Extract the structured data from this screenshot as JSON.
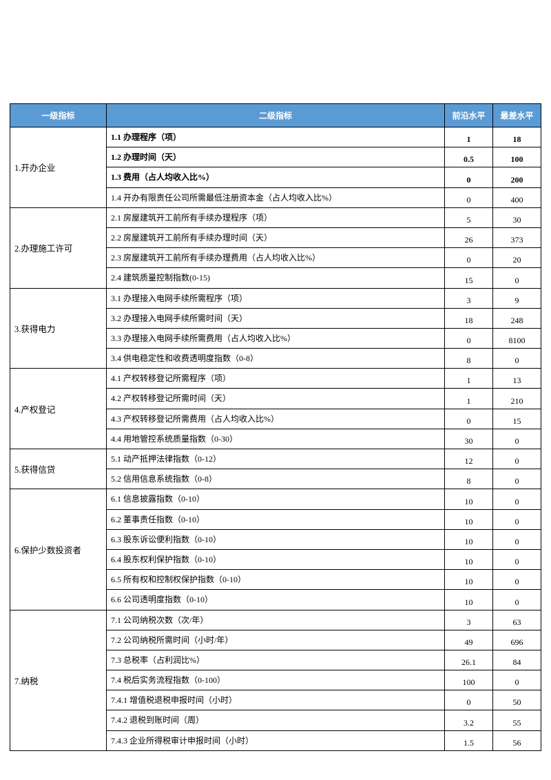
{
  "headers": {
    "col1": "一级指标",
    "col2": "二级指标",
    "col3": "前沿水平",
    "col4": "最差水平"
  },
  "header_bg": "#5b9bd5",
  "header_fg": "#ffffff",
  "border_color": "#000000",
  "groups": [
    {
      "category": "1.开办企业",
      "rows": [
        {
          "metric": "1.1 办理程序（项）",
          "bold": true,
          "v1": "1",
          "v2": "18"
        },
        {
          "metric": "1.2 办理时间（天）",
          "bold": true,
          "v1": "0.5",
          "v2": "100"
        },
        {
          "metric": "1.3 费用（占人均收入比%）",
          "bold": true,
          "v1": "0",
          "v2": "200"
        },
        {
          "metric": "1.4 开办有限责任公司所需最低注册资本金（占人均收入比%）",
          "bold": false,
          "v1": "0",
          "v2": "400"
        }
      ]
    },
    {
      "category": "2.办理施工许可",
      "rows": [
        {
          "metric": "2.1 房屋建筑开工前所有手续办理程序（项）",
          "bold": false,
          "v1": "5",
          "v2": "30"
        },
        {
          "metric": "2.2 房屋建筑开工前所有手续办理时间（天）",
          "bold": false,
          "v1": "26",
          "v2": "373"
        },
        {
          "metric": "2.3 房屋建筑开工前所有手续办理费用（占人均收入比%）",
          "bold": false,
          "v1": "0",
          "v2": "20"
        },
        {
          "metric": "2.4 建筑质量控制指数(0-15)",
          "bold": false,
          "v1": "15",
          "v2": "0"
        }
      ]
    },
    {
      "category": "3.获得电力",
      "rows": [
        {
          "metric": "3.1 办理接入电网手续所需程序（项）",
          "bold": false,
          "v1": "3",
          "v2": "9"
        },
        {
          "metric": "3.2 办理接入电网手续所需时间（天）",
          "bold": false,
          "v1": "18",
          "v2": "248"
        },
        {
          "metric": "3.3 办理接入电网手续所需费用（占人均收入比%）",
          "bold": false,
          "v1": "0",
          "v2": "8100"
        },
        {
          "metric": "3.4 供电稳定性和收费透明度指数（0-8）",
          "bold": false,
          "v1": "8",
          "v2": "0"
        }
      ]
    },
    {
      "category": "4.产权登记",
      "rows": [
        {
          "metric": "4.1 产权转移登记所需程序（项）",
          "bold": false,
          "v1": "1",
          "v2": "13"
        },
        {
          "metric": "4.2 产权转移登记所需时间（天）",
          "bold": false,
          "v1": "1",
          "v2": "210"
        },
        {
          "metric": "4.3 产权转移登记所需费用（占人均收入比%）",
          "bold": false,
          "v1": "0",
          "v2": "15"
        },
        {
          "metric": "4.4 用地管控系统质量指数（0-30）",
          "bold": false,
          "v1": "30",
          "v2": "0"
        }
      ]
    },
    {
      "category": "5.获得信贷",
      "rows": [
        {
          "metric": "5.1 动产抵押法律指数（0-12）",
          "bold": false,
          "v1": "12",
          "v2": "0"
        },
        {
          "metric": "5.2 信用信息系统指数（0-8）",
          "bold": false,
          "v1": "8",
          "v2": "0"
        }
      ]
    },
    {
      "category": "6.保护少数投资者",
      "rows": [
        {
          "metric": "6.1 信息披露指数（0-10）",
          "bold": false,
          "v1": "10",
          "v2": "0"
        },
        {
          "metric": "6.2 董事责任指数（0-10）",
          "bold": false,
          "v1": "10",
          "v2": "0"
        },
        {
          "metric": "6.3 股东诉讼便利指数（0-10）",
          "bold": false,
          "v1": "10",
          "v2": "0"
        },
        {
          "metric": "6.4 股东权利保护指数（0-10）",
          "bold": false,
          "v1": "10",
          "v2": "0"
        },
        {
          "metric": "6.5 所有权和控制权保护指数（0-10）",
          "bold": false,
          "v1": "10",
          "v2": "0"
        },
        {
          "metric": "6.6 公司透明度指数（0-10）",
          "bold": false,
          "v1": "10",
          "v2": "0"
        }
      ]
    },
    {
      "category": "7.纳税",
      "rows": [
        {
          "metric": "7.1 公司纳税次数（次/年）",
          "bold": false,
          "v1": "3",
          "v2": "63"
        },
        {
          "metric": "7.2 公司纳税所需时间（小时/年）",
          "bold": false,
          "v1": "49",
          "v2": "696"
        },
        {
          "metric": "7.3 总税率（占利润比%）",
          "bold": false,
          "v1": "26.1",
          "v2": "84"
        },
        {
          "metric": "7.4 税后实务流程指数（0-100）",
          "bold": false,
          "v1": "100",
          "v2": "0"
        },
        {
          "metric": "7.4.1 增值税退税申报时间（小时）",
          "bold": false,
          "v1": "0",
          "v2": "50"
        },
        {
          "metric": "7.4.2 退税到账时间（周）",
          "bold": false,
          "v1": "3.2",
          "v2": "55"
        },
        {
          "metric": "7.4.3 企业所得税审计申报时间（小时）",
          "bold": false,
          "v1": "1.5",
          "v2": "56"
        }
      ]
    }
  ]
}
